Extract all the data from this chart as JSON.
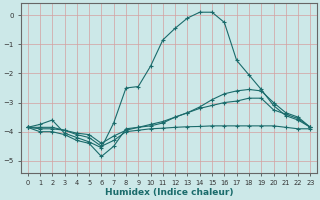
{
  "xlabel": "Humidex (Indice chaleur)",
  "xlim": [
    -0.5,
    23.5
  ],
  "ylim": [
    -5.4,
    0.4
  ],
  "yticks": [
    0,
    -1,
    -2,
    -3,
    -4,
    -5
  ],
  "xticks": [
    0,
    1,
    2,
    3,
    4,
    5,
    6,
    7,
    8,
    9,
    10,
    11,
    12,
    13,
    14,
    15,
    16,
    17,
    18,
    19,
    20,
    21,
    22,
    23
  ],
  "background_color": "#cce8e8",
  "line_color": "#1a6b6b",
  "grid_color": "#b8d8d8",
  "lines": [
    {
      "x": [
        0,
        1,
        2,
        3,
        4,
        5,
        6,
        7,
        8,
        9,
        10,
        11,
        12,
        13,
        14,
        15,
        16,
        17,
        18,
        19,
        20,
        21,
        22,
        23
      ],
      "y": [
        -3.85,
        -3.75,
        -3.6,
        -4.05,
        -4.2,
        -4.35,
        -4.55,
        -3.7,
        -2.5,
        -2.45,
        -1.75,
        -0.85,
        -0.45,
        -0.1,
        0.1,
        0.1,
        -0.25,
        -1.55,
        -2.05,
        -2.55,
        -3.1,
        -3.45,
        -3.6,
        -3.85
      ],
      "marker": "o",
      "markersize": 2.0,
      "linewidth": 1.0
    },
    {
      "x": [
        0,
        1,
        2,
        3,
        4,
        5,
        6,
        7,
        8,
        9,
        10,
        11,
        12,
        13,
        14,
        15,
        16,
        17,
        18,
        19,
        20,
        21,
        22,
        23
      ],
      "y": [
        -3.85,
        -4.0,
        -4.0,
        -4.1,
        -4.3,
        -4.4,
        -4.85,
        -4.5,
        -3.9,
        -3.85,
        -3.8,
        -3.7,
        -3.5,
        -3.35,
        -3.15,
        -2.9,
        -2.7,
        -2.6,
        -2.55,
        -2.6,
        -3.0,
        -3.35,
        -3.5,
        -3.85
      ],
      "marker": "o",
      "markersize": 2.0,
      "linewidth": 1.0
    },
    {
      "x": [
        0,
        1,
        2,
        3,
        4,
        5,
        6,
        7,
        8,
        9,
        10,
        11,
        12,
        13,
        14,
        15,
        16,
        17,
        18,
        19,
        20,
        21,
        22,
        23
      ],
      "y": [
        -3.85,
        -3.85,
        -3.85,
        -3.95,
        -4.05,
        -4.1,
        -4.4,
        -4.15,
        -3.95,
        -3.85,
        -3.75,
        -3.65,
        -3.5,
        -3.35,
        -3.2,
        -3.1,
        -3.0,
        -2.95,
        -2.85,
        -2.85,
        -3.25,
        -3.4,
        -3.55,
        -3.85
      ],
      "marker": "o",
      "markersize": 2.0,
      "linewidth": 1.0
    },
    {
      "x": [
        0,
        1,
        2,
        3,
        4,
        5,
        6,
        7,
        8,
        9,
        10,
        11,
        12,
        13,
        14,
        15,
        16,
        17,
        18,
        19,
        20,
        21,
        22,
        23
      ],
      "y": [
        -3.85,
        -3.9,
        -3.9,
        -3.95,
        -4.1,
        -4.2,
        -4.5,
        -4.3,
        -4.0,
        -3.95,
        -3.9,
        -3.88,
        -3.85,
        -3.83,
        -3.82,
        -3.8,
        -3.8,
        -3.8,
        -3.8,
        -3.8,
        -3.8,
        -3.85,
        -3.9,
        -3.9
      ],
      "marker": "o",
      "markersize": 2.0,
      "linewidth": 1.0
    }
  ]
}
